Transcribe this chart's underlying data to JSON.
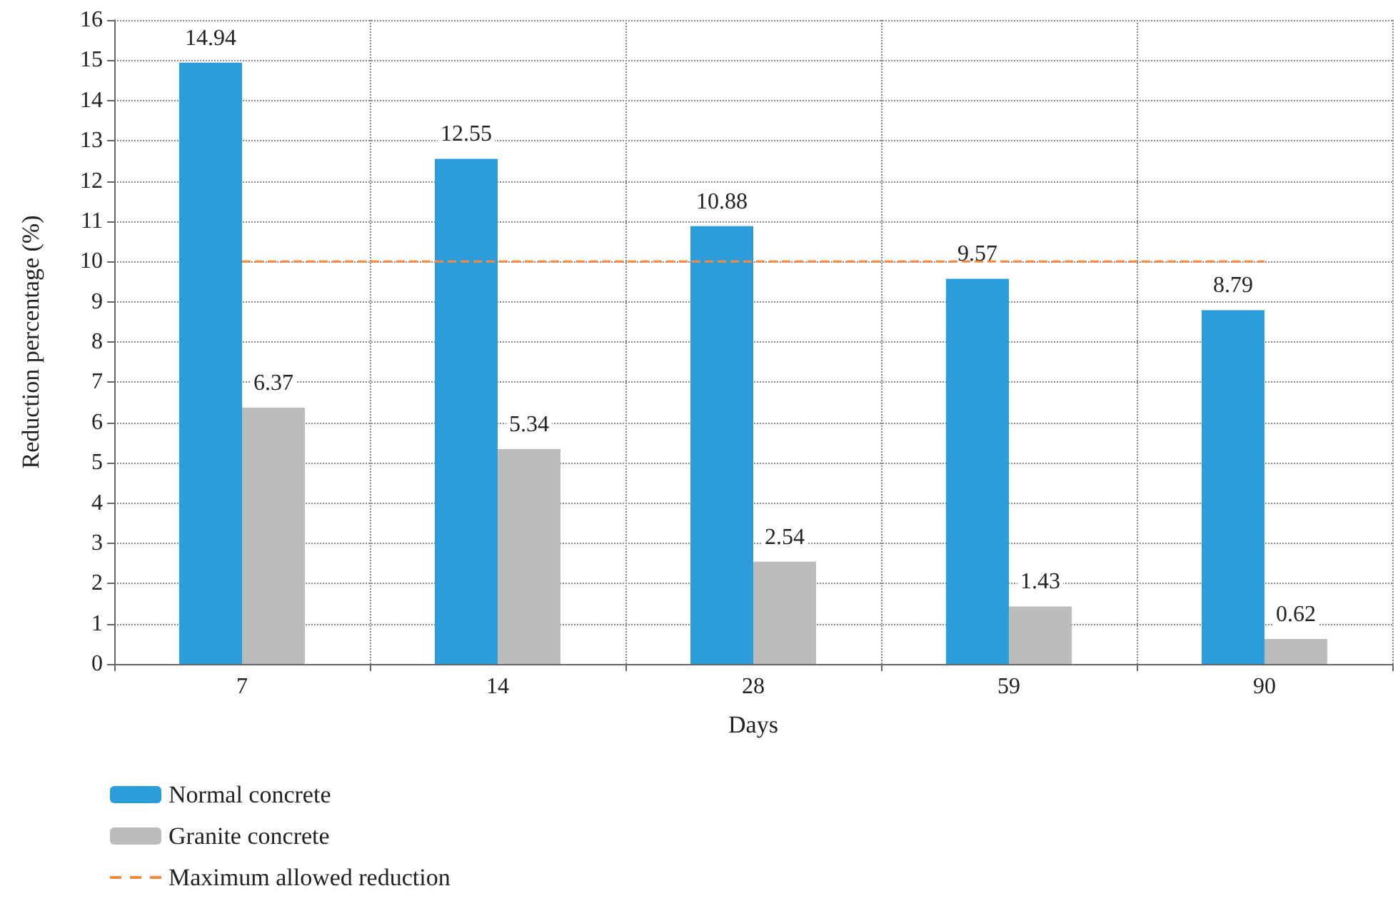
{
  "chart_data": {
    "type": "bar",
    "xlabel": "Days",
    "ylabel": "Reduction percentage (%)",
    "categories": [
      "7",
      "14",
      "28",
      "59",
      "90"
    ],
    "series": [
      {
        "name": "Normal concrete",
        "color": "#2b9ddb",
        "values": [
          14.94,
          12.55,
          10.88,
          9.57,
          8.79
        ]
      },
      {
        "name": "Granite concrete",
        "color": "#bcbcbc",
        "values": [
          6.37,
          5.34,
          2.54,
          1.43,
          0.62
        ]
      }
    ],
    "ylim": [
      0,
      16
    ],
    "yticks": [
      0,
      1,
      2,
      3,
      4,
      5,
      6,
      7,
      8,
      9,
      10,
      11,
      12,
      13,
      14,
      15,
      16
    ],
    "ref_lines": [
      {
        "axis": "y",
        "value": 10,
        "label": "Maximum allowed reduction",
        "color": "#f5883a",
        "line_style": "dashed"
      }
    ],
    "data_labels": true,
    "grid": true,
    "legend": "bottom left"
  }
}
